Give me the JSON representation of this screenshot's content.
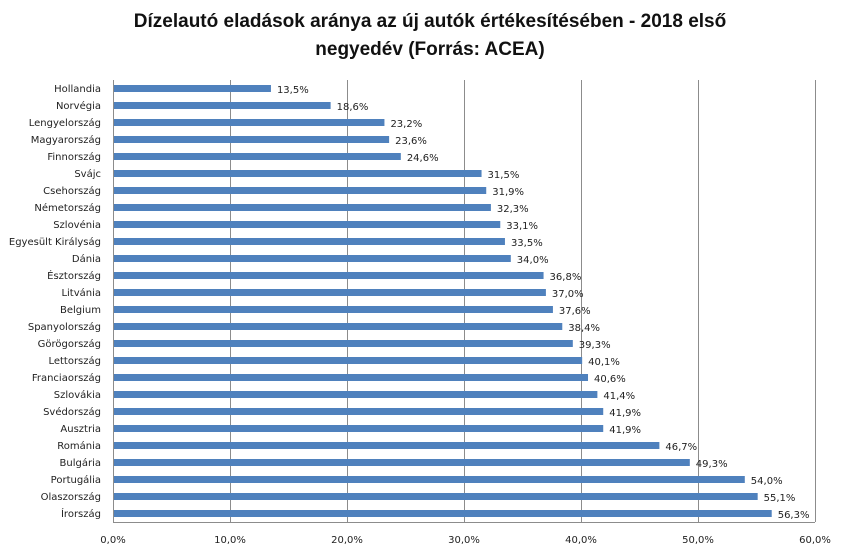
{
  "chart_data": {
    "type": "bar",
    "orientation": "horizontal",
    "title": "Dízelautó eladások aránya az új autók értékesítésében - 2018 első negyedév (Forrás: ACEA)",
    "title_lines": [
      "Dízelautó eladások aránya az új autók értékesítésében - 2018 első",
      "negyedév (Forrás: ACEA)"
    ],
    "xlabel": "",
    "ylabel": "",
    "xlim": [
      0,
      60
    ],
    "x_ticks": [
      0,
      10,
      20,
      30,
      40,
      50,
      60
    ],
    "x_tick_labels": [
      "0,0%",
      "10,0%",
      "20,0%",
      "30,0%",
      "40,0%",
      "50,0%",
      "60,0%"
    ],
    "grid": true,
    "legend": "none",
    "bar_color": "#4F81BD",
    "categories": [
      "Hollandia",
      "Norvégia",
      "Lengyelország",
      "Magyarország",
      "Finnország",
      "Svájc",
      "Csehország",
      "Németország",
      "Szlovénia",
      "Egyesült Királyság",
      "Dánia",
      "Észtország",
      "Litvánia",
      "Belgium",
      "Spanyolország",
      "Görögország",
      "Lettország",
      "Franciaország",
      "Szlovákia",
      "Svédország",
      "Ausztria",
      "Románia",
      "Bulgária",
      "Portugália",
      "Olaszország",
      "Írország"
    ],
    "values": [
      13.5,
      18.6,
      23.2,
      23.6,
      24.6,
      31.5,
      31.9,
      32.3,
      33.1,
      33.5,
      34.0,
      36.8,
      37.0,
      37.6,
      38.4,
      39.3,
      40.1,
      40.6,
      41.4,
      41.9,
      41.9,
      46.7,
      49.3,
      54.0,
      55.1,
      56.3
    ],
    "value_labels": [
      "13,5%",
      "18,6%",
      "23,2%",
      "23,6%",
      "24,6%",
      "31,5%",
      "31,9%",
      "32,3%",
      "33,1%",
      "33,5%",
      "34,0%",
      "36,8%",
      "37,0%",
      "37,6%",
      "38,4%",
      "39,3%",
      "40,1%",
      "40,6%",
      "41,4%",
      "41,9%",
      "41,9%",
      "46,7%",
      "49,3%",
      "54,0%",
      "55,1%",
      "56,3%"
    ]
  }
}
